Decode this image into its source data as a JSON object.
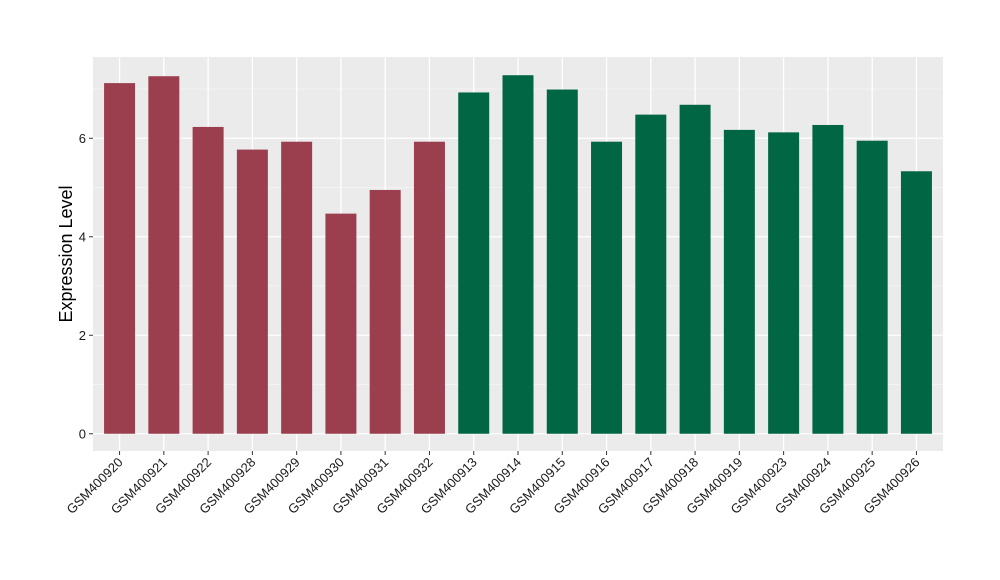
{
  "chart_data": {
    "type": "bar",
    "title": "",
    "xlabel": "",
    "ylabel": "Expression Level",
    "ylim": [
      -0.35,
      7.65
    ],
    "yticks": [
      0,
      2,
      4,
      6
    ],
    "grid": true,
    "legend": "none",
    "background": "#ebebeb",
    "gridline_color": "#ffffff",
    "categories": [
      "GSM400920",
      "GSM400921",
      "GSM400922",
      "GSM400928",
      "GSM400929",
      "GSM400930",
      "GSM400931",
      "GSM400932",
      "GSM400913",
      "GSM400914",
      "GSM400915",
      "GSM400916",
      "GSM400917",
      "GSM400918",
      "GSM400919",
      "GSM400923",
      "GSM400924",
      "GSM400925",
      "GSM400926"
    ],
    "values": [
      7.12,
      7.26,
      6.23,
      5.77,
      5.93,
      4.47,
      4.95,
      5.93,
      6.93,
      7.28,
      6.99,
      5.93,
      6.48,
      6.68,
      6.17,
      6.12,
      6.27,
      5.95,
      5.33
    ],
    "colors": [
      "#9b3f4f",
      "#9b3f4f",
      "#9b3f4f",
      "#9b3f4f",
      "#9b3f4f",
      "#9b3f4f",
      "#9b3f4f",
      "#9b3f4f",
      "#006644",
      "#006644",
      "#006644",
      "#006644",
      "#006644",
      "#006644",
      "#006644",
      "#006644",
      "#006644",
      "#006644",
      "#006644"
    ]
  }
}
